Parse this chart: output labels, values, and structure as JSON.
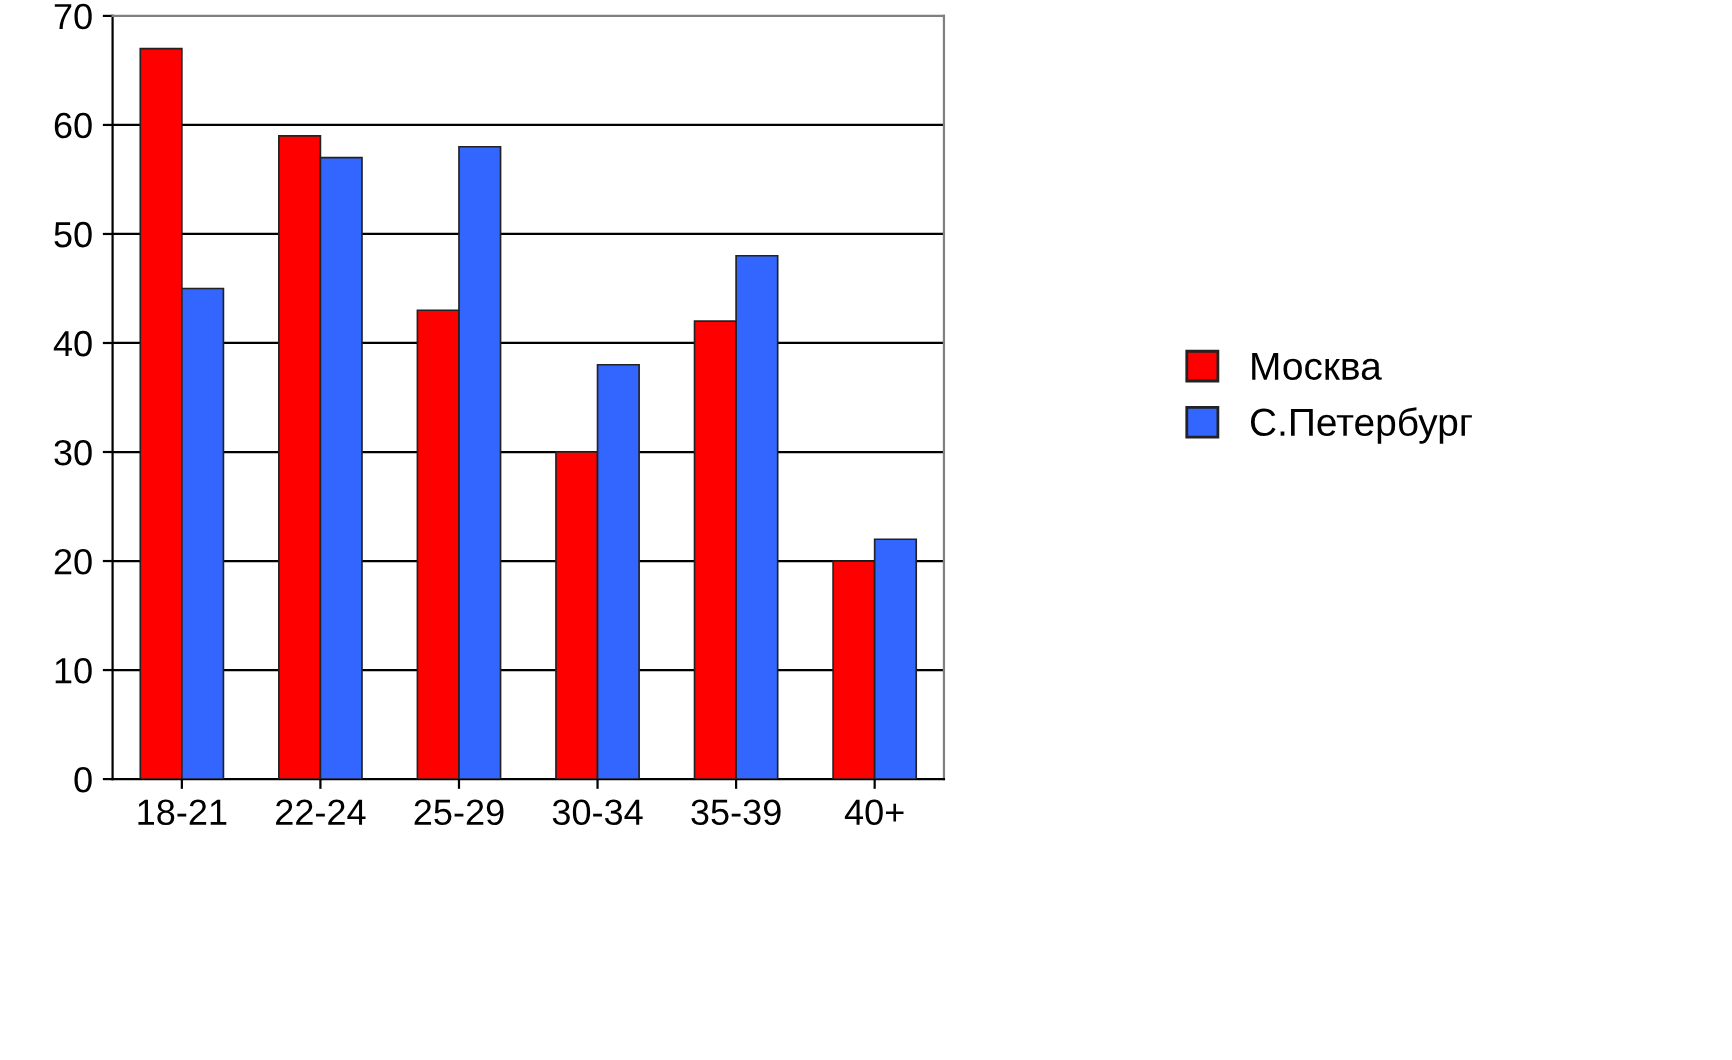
{
  "chart_data": {
    "type": "bar",
    "categories": [
      "18-21",
      "22-24",
      "25-29",
      "30-34",
      "35-39",
      "40+"
    ],
    "series": [
      {
        "name": "Москва",
        "color": "#ff0000",
        "values": [
          67,
          59,
          43,
          30,
          42,
          20
        ]
      },
      {
        "name": "С.Петербург",
        "color": "#3366ff",
        "values": [
          45,
          57,
          58,
          38,
          48,
          22
        ]
      }
    ],
    "ylim": [
      0,
      70
    ],
    "yticks": [
      0,
      10,
      20,
      30,
      40,
      50,
      60,
      70
    ],
    "grid": "y",
    "legend": "right"
  }
}
